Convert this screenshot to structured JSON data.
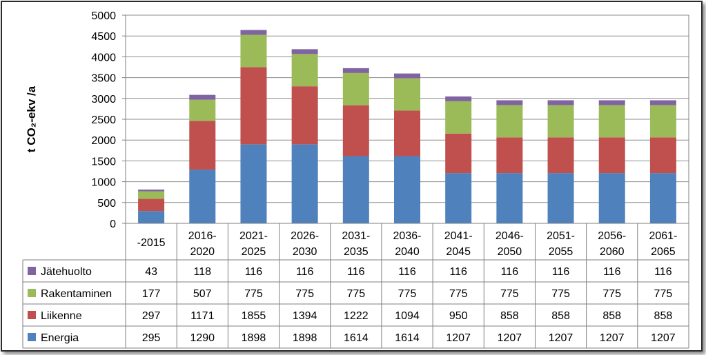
{
  "chart_data": {
    "type": "bar",
    "stacked": true,
    "ylabel": "t CO₂-ekv /a",
    "ylim": [
      0,
      5000
    ],
    "yticks": [
      0,
      500,
      1000,
      1500,
      2000,
      2500,
      3000,
      3500,
      4000,
      4500,
      5000
    ],
    "grid": true,
    "legend": "data-table-below",
    "categories": [
      [
        "-2015"
      ],
      [
        "2016-",
        "2020"
      ],
      [
        "2021-",
        "2025"
      ],
      [
        "2026-",
        "2030"
      ],
      [
        "2031-",
        "2035"
      ],
      [
        "2036-",
        "2040"
      ],
      [
        "2041-",
        "2045"
      ],
      [
        "2046-",
        "2050"
      ],
      [
        "2051-",
        "2055"
      ],
      [
        "2056-",
        "2060"
      ],
      [
        "2061-",
        "2065"
      ]
    ],
    "series": [
      {
        "name": "Energia",
        "color": "#4f81bd",
        "values": [
          295,
          1290,
          1898,
          1898,
          1614,
          1614,
          1207,
          1207,
          1207,
          1207,
          1207
        ]
      },
      {
        "name": "Liikenne",
        "color": "#c0504d",
        "values": [
          297,
          1171,
          1855,
          1394,
          1222,
          1094,
          950,
          858,
          858,
          858,
          858
        ]
      },
      {
        "name": "Rakentaminen",
        "color": "#9bbb59",
        "values": [
          177,
          507,
          775,
          775,
          775,
          775,
          775,
          775,
          775,
          775,
          775
        ]
      },
      {
        "name": "Jätehuolto",
        "color": "#8064a2",
        "values": [
          43,
          118,
          116,
          116,
          116,
          116,
          116,
          116,
          116,
          116,
          116
        ]
      }
    ],
    "table_row_order": [
      "Jätehuolto",
      "Rakentaminen",
      "Liikenne",
      "Energia"
    ]
  }
}
